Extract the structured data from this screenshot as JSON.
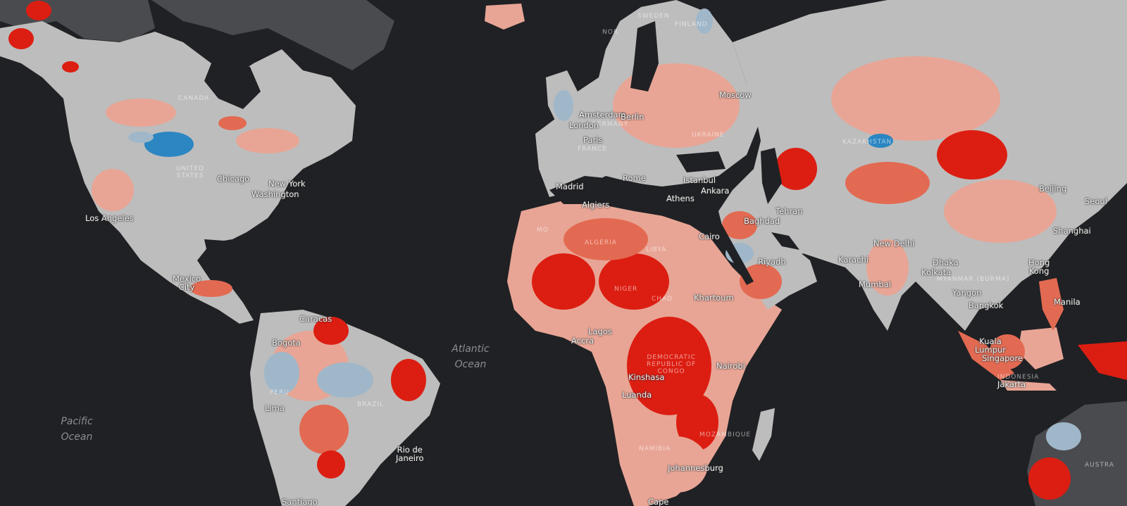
{
  "colors": {
    "background": "#202124",
    "land_low": "#bdbdbd",
    "dark_land": "#4a4b4e",
    "deficit_mild": "#e8a595",
    "deficit_moderate": "#e36a52",
    "deficit_severe": "#dc1e12",
    "surplus_mild": "#9fb7c9",
    "surplus_strong": "#2b86c2"
  },
  "oceans": {
    "pacific_line1": "Pacific",
    "pacific_line2": "Ocean",
    "atlantic_line1": "Atlantic",
    "atlantic_line2": "Ocean"
  },
  "cities": {
    "los_angeles": "Los Angeles",
    "chicago": "Chicago",
    "new_york": "New York",
    "washington": "Washington",
    "mexico_city_line1": "Mexico",
    "mexico_city_line2": "City",
    "caracas": "Caracas",
    "bogota": "Bogota",
    "lima": "Lima",
    "rio_line1": "Rio de",
    "rio_line2": "Janeiro",
    "santiago": "Santiago",
    "amsterdam": "Amsterdam",
    "london": "London",
    "berlin": "Berlin",
    "paris": "Paris",
    "madrid": "Madrid",
    "rome": "Rome",
    "algiers": "Algiers",
    "moscow": "Moscow",
    "istanbul": "Istanbul",
    "ankara": "Ankara",
    "athens": "Athens",
    "cairo": "Cairo",
    "baghdad": "Baghdad",
    "tehran": "Tehran",
    "riyadh": "Riyadh",
    "khartoum": "Khartoum",
    "lagos": "Lagos",
    "accra": "Accra",
    "kinshasa": "Kinshasa",
    "luanda": "Luanda",
    "nairobi": "Nairobi",
    "johannesburg": "Johannesburg",
    "cape": "Cape",
    "karachi": "Karachi",
    "new_delhi": "New Delhi",
    "mumbai": "Mumbai",
    "dhaka": "Dhaka",
    "kolkata": "Kolkata",
    "yangon": "Yangon",
    "bangkok": "Bangkok",
    "kuala_lumpur_line1": "Kuala",
    "kuala_lumpur_line2": "Lumpur",
    "singapore": "Singapore",
    "jakarta": "Jakarta",
    "manila": "Manila",
    "hong_kong_line1": "Hong",
    "hong_kong_line2": "Kong",
    "shanghai": "Shanghai",
    "beijing": "Beijing",
    "seoul": "Seoul"
  },
  "countries": {
    "canada": "CANADA",
    "united_states_line1": "UNITED",
    "united_states_line2": "STATES",
    "peru": "PERU",
    "brazil": "BRAZIL",
    "sweden": "SWEDEN",
    "finland": "FINLAND",
    "norway": "NOR",
    "germany": "GERMANY",
    "france": "FRANCE",
    "ukraine": "UKRAINE",
    "kazakhstan": "KAZAKHSTAN",
    "morocco": "MO",
    "algeria": "ALGERIA",
    "libya": "LIBYA",
    "niger": "NIGER",
    "chad": "CHAD",
    "dr_congo_line1": "DEMOCRATIC",
    "dr_congo_line2": "REPUBLIC OF",
    "dr_congo_line3": "CONGO",
    "mozambique": "MOZAMBIQUE",
    "namibia": "NAMIBIA",
    "myanmar": "MYANMAR (BURMA)",
    "indonesia": "INDONESIA",
    "australia": "AUSTRA"
  }
}
